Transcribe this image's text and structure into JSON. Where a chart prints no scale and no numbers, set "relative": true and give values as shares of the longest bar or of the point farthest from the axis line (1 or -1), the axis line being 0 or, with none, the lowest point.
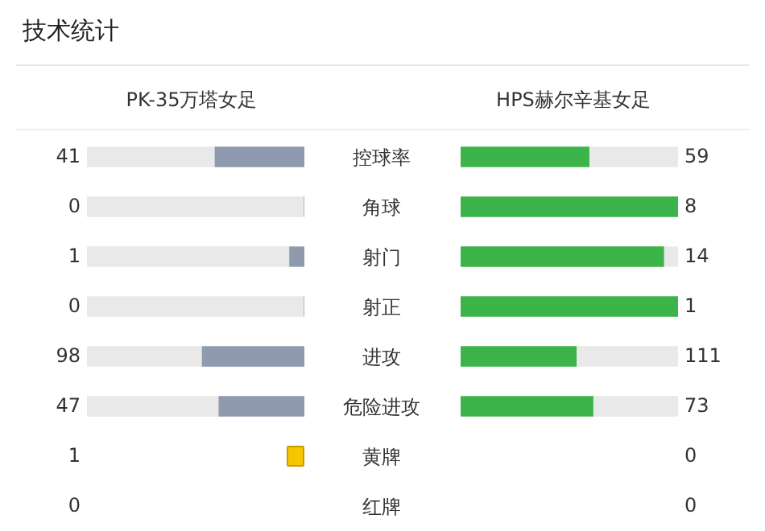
{
  "chart_data": [
    {
      "type": "bar",
      "orientation": "horizontal",
      "stacked": true,
      "relative": true,
      "title": "技术统计",
      "legend": "top",
      "categories": [
        "控球率",
        "角球",
        "射门",
        "射正",
        "进攻",
        "危险进攻",
        "黄牌",
        "红牌"
      ],
      "series": [
        {
          "name": "PK-35万塔女足",
          "color": "#8f9aae",
          "values": [
            0.41,
            0,
            0.067,
            0,
            0.469,
            0.392,
            null,
            null
          ]
        },
        {
          "color": "#e9e9e9",
          "values": [
            0.59,
            1,
            0.933,
            1,
            0.531,
            0.608,
            null,
            null
          ]
        }
      ],
      "annotations": [
        "41",
        "0",
        "1",
        "0",
        "98",
        "47",
        "1",
        "0"
      ]
    },
    {
      "type": "bar",
      "orientation": "horizontal",
      "stacked": true,
      "relative": true,
      "legend": "top",
      "categories": [
        null,
        null,
        null,
        null,
        null,
        null,
        null,
        null
      ],
      "series": [
        {
          "name": "HPS赫尔辛基女足",
          "color": "#3cb449",
          "values": [
            0.59,
            1,
            0.933,
            1,
            0.531,
            0.608,
            null,
            null
          ]
        },
        {
          "color": "#e9e9e9",
          "values": [
            0.41,
            0,
            0.067,
            0,
            0.469,
            0.392,
            null,
            null
          ]
        }
      ],
      "annotations": [
        "59",
        "8",
        "14",
        "1",
        "111",
        "73",
        "0",
        "0"
      ]
    }
  ]
}
